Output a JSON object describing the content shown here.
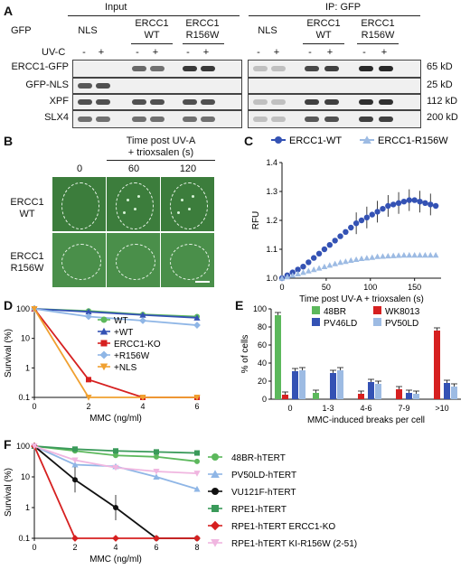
{
  "panels": {
    "A": "A",
    "B": "B",
    "C": "C",
    "D": "D",
    "E": "E",
    "F": "F"
  },
  "panelA": {
    "row_gfp": "GFP",
    "row_uvc": "UV-C",
    "header_input": "Input",
    "header_ip": "IP: GFP",
    "lanes": {
      "nls": "NLS",
      "wt_top": "ERCC1",
      "wt_bot": "WT",
      "mut_top": "ERCC1",
      "mut_bot": "R156W"
    },
    "uv_signs": [
      "-",
      "+",
      "-",
      "+",
      "-",
      "+"
    ],
    "blots": [
      {
        "label": "ERCC1-GFP",
        "size": "65 kD"
      },
      {
        "label": "GFP-NLS",
        "size": "25 kD"
      },
      {
        "label": "XPF",
        "size": "112 kD"
      },
      {
        "label": "SLX4",
        "size": "200 kD"
      }
    ]
  },
  "panelB": {
    "time_title": "Time post UV-A",
    "time_sub": "+ trioxsalen (s)",
    "times": [
      "0",
      "60",
      "120"
    ],
    "rows": [
      {
        "l1": "ERCC1",
        "l2": "WT"
      },
      {
        "l1": "ERCC1",
        "l2": "R156W"
      }
    ]
  },
  "panelC": {
    "legend": [
      {
        "name": "ERCC1-WT",
        "color": "#3452b4",
        "marker": "circle"
      },
      {
        "name": "ERCC1-R156W",
        "color": "#9dbbe3",
        "marker": "triangle"
      }
    ],
    "ylabel": "RFU",
    "xlabel": "Time post UV-A + trioxsalen (s)",
    "yticks": [
      "1.0",
      "1.1",
      "1.2",
      "1.3",
      "1.4"
    ],
    "xticks": [
      "0",
      "50",
      "100",
      "150"
    ]
  },
  "panelD": {
    "ylabel": "Survival (%)",
    "xlabel": "MMC (ng/ml)",
    "yticks": [
      "0.1",
      "1",
      "10",
      "100"
    ],
    "xticks": [
      "0",
      "2",
      "4",
      "6"
    ],
    "legend": [
      {
        "name": "WT",
        "color": "#5cb85c",
        "marker": "circle"
      },
      {
        "name": "+WT",
        "color": "#3452b4",
        "marker": "triangle"
      },
      {
        "name": "ERCC1-KO",
        "color": "#d62020",
        "marker": "square"
      },
      {
        "name": "+R156W",
        "color": "#8fb6e6",
        "marker": "diamond"
      },
      {
        "name": "+NLS",
        "color": "#f0a030",
        "marker": "tri-down"
      }
    ]
  },
  "panelE": {
    "ylabel": "% of cells",
    "xlabel": "MMC-induced breaks per cell",
    "yticks": [
      "0",
      "20",
      "40",
      "60",
      "80",
      "100"
    ],
    "categories": [
      "0",
      "1-3",
      "4-6",
      "7-9",
      ">10"
    ],
    "legend": [
      {
        "name": "48BR",
        "color": "#5cb85c"
      },
      {
        "name": "WK8013",
        "color": "#d62020"
      },
      {
        "name": "PV46LD",
        "color": "#3452b4"
      },
      {
        "name": "PV50LD",
        "color": "#9dbbe3"
      }
    ]
  },
  "panelF": {
    "ylabel": "Survival (%)",
    "xlabel": "MMC (ng/ml)",
    "yticks": [
      "0.1",
      "1",
      "10",
      "100"
    ],
    "xticks": [
      "0",
      "2",
      "4",
      "6",
      "8"
    ],
    "legend": [
      {
        "name": "48BR-hTERT",
        "color": "#5cb85c",
        "marker": "circle"
      },
      {
        "name": "PV50LD-hTERT",
        "color": "#8fb6e6",
        "marker": "triangle"
      },
      {
        "name": "VU121F-hTERT",
        "color": "#111111",
        "marker": "circle"
      },
      {
        "name": "RPE1-hTERT",
        "color": "#3a9a5a",
        "marker": "square"
      },
      {
        "name": "RPE1-hTERT ERCC1-KO",
        "color": "#d62020",
        "marker": "diamond"
      },
      {
        "name": "RPE1-hTERT KI-R156W (2-51)",
        "color": "#f0b6e0",
        "marker": "tri-down"
      }
    ]
  },
  "chart_data": [
    {
      "type": "line",
      "panel": "C",
      "xlabel": "Time post UV-A + trioxsalen (s)",
      "ylabel": "RFU",
      "xlim": [
        0,
        180
      ],
      "ylim": [
        1.0,
        1.4
      ],
      "series": [
        {
          "name": "ERCC1-WT",
          "x": [
            0,
            6,
            12,
            18,
            24,
            30,
            36,
            42,
            48,
            54,
            60,
            66,
            72,
            78,
            84,
            90,
            96,
            102,
            108,
            114,
            120,
            126,
            132,
            138,
            144,
            150,
            156,
            162,
            168,
            174
          ],
          "values": [
            1.0,
            1.01,
            1.02,
            1.03,
            1.04,
            1.055,
            1.07,
            1.085,
            1.1,
            1.115,
            1.13,
            1.145,
            1.16,
            1.175,
            1.19,
            1.2,
            1.21,
            1.22,
            1.23,
            1.24,
            1.25,
            1.255,
            1.26,
            1.265,
            1.27,
            1.27,
            1.265,
            1.26,
            1.255,
            1.25
          ]
        },
        {
          "name": "ERCC1-R156W",
          "x": [
            0,
            6,
            12,
            18,
            24,
            30,
            36,
            42,
            48,
            54,
            60,
            66,
            72,
            78,
            84,
            90,
            96,
            102,
            108,
            114,
            120,
            126,
            132,
            138,
            144,
            150,
            156,
            162,
            168,
            174
          ],
          "values": [
            1.0,
            1.005,
            1.01,
            1.015,
            1.02,
            1.025,
            1.03,
            1.035,
            1.04,
            1.045,
            1.05,
            1.055,
            1.058,
            1.062,
            1.065,
            1.068,
            1.07,
            1.072,
            1.075,
            1.076,
            1.077,
            1.078,
            1.079,
            1.08,
            1.08,
            1.08,
            1.08,
            1.08,
            1.08,
            1.08
          ]
        }
      ]
    },
    {
      "type": "line",
      "panel": "D",
      "xlabel": "MMC (ng/ml)",
      "ylabel": "Survival (%)",
      "yscale": "log",
      "xlim": [
        0,
        6
      ],
      "ylim": [
        0.1,
        100
      ],
      "series": [
        {
          "name": "WT",
          "x": [
            0,
            2,
            4,
            6
          ],
          "values": [
            100,
            85,
            65,
            55
          ]
        },
        {
          "name": "+WT",
          "x": [
            0,
            2,
            4,
            6
          ],
          "values": [
            100,
            80,
            62,
            50
          ]
        },
        {
          "name": "ERCC1-KO",
          "x": [
            0,
            2,
            4,
            6
          ],
          "values": [
            100,
            0.4,
            0.1,
            0.1
          ]
        },
        {
          "name": "+R156W",
          "x": [
            0,
            2,
            4,
            6
          ],
          "values": [
            100,
            55,
            40,
            28
          ]
        },
        {
          "name": "+NLS",
          "x": [
            0,
            2,
            4,
            6
          ],
          "values": [
            100,
            0.1,
            0.1,
            0.1
          ]
        }
      ]
    },
    {
      "type": "bar",
      "panel": "E",
      "xlabel": "MMC-induced breaks per cell",
      "ylabel": "% of cells",
      "ylim": [
        0,
        100
      ],
      "categories": [
        "0",
        "1-3",
        "4-6",
        "7-9",
        ">10"
      ],
      "series": [
        {
          "name": "48BR",
          "values": [
            93,
            7,
            0,
            0,
            0
          ]
        },
        {
          "name": "WK8013",
          "values": [
            5,
            0,
            6,
            11,
            76
          ]
        },
        {
          "name": "PV46LD",
          "values": [
            31,
            29,
            19,
            7,
            18
          ]
        },
        {
          "name": "PV50LD",
          "values": [
            32,
            32,
            17,
            6,
            14
          ]
        }
      ]
    },
    {
      "type": "line",
      "panel": "F",
      "xlabel": "MMC (ng/ml)",
      "ylabel": "Survival (%)",
      "yscale": "log",
      "xlim": [
        0,
        8
      ],
      "ylim": [
        0.1,
        100
      ],
      "series": [
        {
          "name": "48BR-hTERT",
          "x": [
            0,
            2,
            4,
            6,
            8
          ],
          "values": [
            100,
            70,
            50,
            45,
            32
          ]
        },
        {
          "name": "PV50LD-hTERT",
          "x": [
            0,
            2,
            4,
            6,
            8
          ],
          "values": [
            100,
            25,
            22,
            10,
            4
          ]
        },
        {
          "name": "VU121F-hTERT",
          "x": [
            0,
            2,
            4,
            6,
            8
          ],
          "values": [
            100,
            8,
            1,
            0.1,
            0.1
          ]
        },
        {
          "name": "RPE1-hTERT",
          "x": [
            0,
            2,
            4,
            6,
            8
          ],
          "values": [
            100,
            80,
            70,
            65,
            60
          ]
        },
        {
          "name": "RPE1-hTERT ERCC1-KO",
          "x": [
            0,
            2,
            4,
            6,
            8
          ],
          "values": [
            100,
            0.1,
            0.1,
            0.1,
            0.1
          ]
        },
        {
          "name": "RPE1-hTERT KI-R156W (2-51)",
          "x": [
            0,
            2,
            4,
            6,
            8
          ],
          "values": [
            100,
            35,
            20,
            15,
            13
          ]
        }
      ]
    }
  ]
}
